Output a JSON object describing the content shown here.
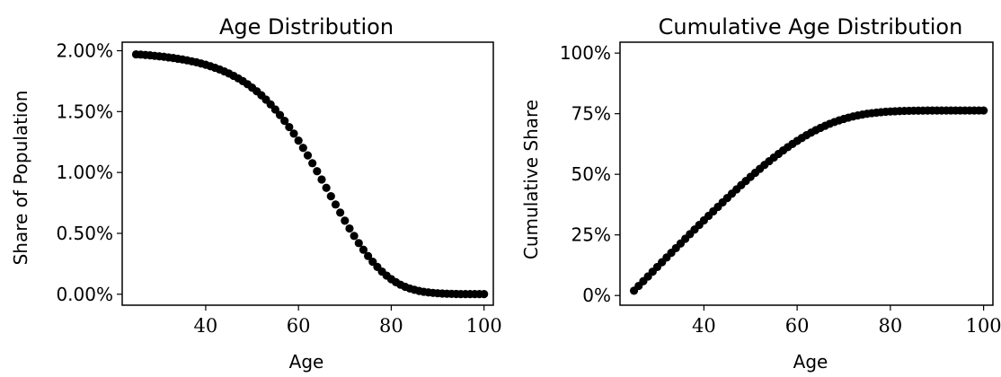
{
  "chart_data": [
    {
      "type": "scatter",
      "title": "Age Distribution",
      "xlabel": "Age",
      "ylabel": "Share of Population",
      "xlim": [
        22,
        102
      ],
      "ylim": [
        -0.0009,
        0.0207
      ],
      "xticks": [
        40,
        60,
        80,
        100
      ],
      "xtick_labels": [
        "40",
        "60",
        "80",
        "100"
      ],
      "yticks": [
        0,
        0.005,
        0.01,
        0.015,
        0.02
      ],
      "ytick_labels": [
        "0.00%",
        "0.50%",
        "1.00%",
        "1.50%",
        "2.00%"
      ],
      "grid": false,
      "legend": null,
      "marker_color": "#000000",
      "x": [
        25,
        26,
        27,
        28,
        29,
        30,
        31,
        32,
        33,
        34,
        35,
        36,
        37,
        38,
        39,
        40,
        41,
        42,
        43,
        44,
        45,
        46,
        47,
        48,
        49,
        50,
        51,
        52,
        53,
        54,
        55,
        56,
        57,
        58,
        59,
        60,
        61,
        62,
        63,
        64,
        65,
        66,
        67,
        68,
        69,
        70,
        71,
        72,
        73,
        74,
        75,
        76,
        77,
        78,
        79,
        80,
        81,
        82,
        83,
        84,
        85,
        86,
        87,
        88,
        89,
        90,
        91,
        92,
        93,
        94,
        95,
        96,
        97,
        98,
        99,
        100
      ],
      "y": [
        0.0197,
        0.01968,
        0.01965,
        0.01962,
        0.01958,
        0.01954,
        0.0195,
        0.01945,
        0.0194,
        0.01934,
        0.01928,
        0.01921,
        0.01913,
        0.01905,
        0.01895,
        0.01885,
        0.01873,
        0.0186,
        0.01846,
        0.0183,
        0.01813,
        0.01794,
        0.01773,
        0.0175,
        0.01725,
        0.01697,
        0.01667,
        0.01634,
        0.01598,
        0.01559,
        0.01517,
        0.01472,
        0.01424,
        0.01373,
        0.01319,
        0.01262,
        0.01202,
        0.0114,
        0.01076,
        0.0101,
        0.00942,
        0.00874,
        0.00805,
        0.00737,
        0.0067,
        0.00604,
        0.0054,
        0.00479,
        0.0042,
        0.00365,
        0.00314,
        0.00267,
        0.00224,
        0.00186,
        0.00153,
        0.00124,
        0.00099,
        0.00078,
        0.00061,
        0.00047,
        0.00036,
        0.00027,
        0.0002,
        0.00015,
        0.00011,
        8e-05,
        6e-05,
        4e-05,
        3e-05,
        2e-05,
        1.5e-05,
        1e-05,
        1e-05,
        1e-05,
        1e-05,
        1e-05
      ]
    },
    {
      "type": "scatter",
      "title": "Cumulative Age Distribution",
      "xlabel": "Age",
      "ylabel": "Cumulative Share",
      "xlim": [
        22,
        102
      ],
      "ylim": [
        -0.04,
        1.045
      ],
      "xticks": [
        40,
        60,
        80,
        100
      ],
      "xtick_labels": [
        "40",
        "60",
        "80",
        "100"
      ],
      "yticks": [
        0,
        0.25,
        0.5,
        0.75,
        1.0
      ],
      "ytick_labels": [
        "0%",
        "25%",
        "50%",
        "75%",
        "100%"
      ],
      "grid": false,
      "legend": null,
      "marker_color": "#000000",
      "x": [
        25,
        26,
        27,
        28,
        29,
        30,
        31,
        32,
        33,
        34,
        35,
        36,
        37,
        38,
        39,
        40,
        41,
        42,
        43,
        44,
        45,
        46,
        47,
        48,
        49,
        50,
        51,
        52,
        53,
        54,
        55,
        56,
        57,
        58,
        59,
        60,
        61,
        62,
        63,
        64,
        65,
        66,
        67,
        68,
        69,
        70,
        71,
        72,
        73,
        74,
        75,
        76,
        77,
        78,
        79,
        80,
        81,
        82,
        83,
        84,
        85,
        86,
        87,
        88,
        89,
        90,
        91,
        92,
        93,
        94,
        95,
        96,
        97,
        98,
        99,
        100
      ],
      "y": [
        0.0197,
        0.0394,
        0.059,
        0.0786,
        0.0982,
        0.1177,
        0.1372,
        0.1567,
        0.1761,
        0.1954,
        0.2147,
        0.2339,
        0.253,
        0.2721,
        0.291,
        0.3099,
        0.3286,
        0.3472,
        0.3657,
        0.384,
        0.4021,
        0.42,
        0.4378,
        0.4553,
        0.4725,
        0.4895,
        0.5062,
        0.5225,
        0.5385,
        0.5541,
        0.5693,
        0.584,
        0.5982,
        0.612,
        0.6251,
        0.6378,
        0.6498,
        0.6612,
        0.672,
        0.6821,
        0.6915,
        0.7002,
        0.7083,
        0.7157,
        0.7224,
        0.7284,
        0.7338,
        0.7386,
        0.7428,
        0.7465,
        0.7496,
        0.7523,
        0.7545,
        0.7564,
        0.7579,
        0.7591,
        0.7601,
        0.7609,
        0.7615,
        0.762,
        0.7624,
        0.7626,
        0.7628,
        0.763,
        0.7631,
        0.7632,
        0.7632,
        0.7633,
        0.7633,
        0.7633,
        0.7633,
        0.7633,
        0.7633,
        0.7633,
        0.7633,
        0.7633
      ]
    }
  ]
}
